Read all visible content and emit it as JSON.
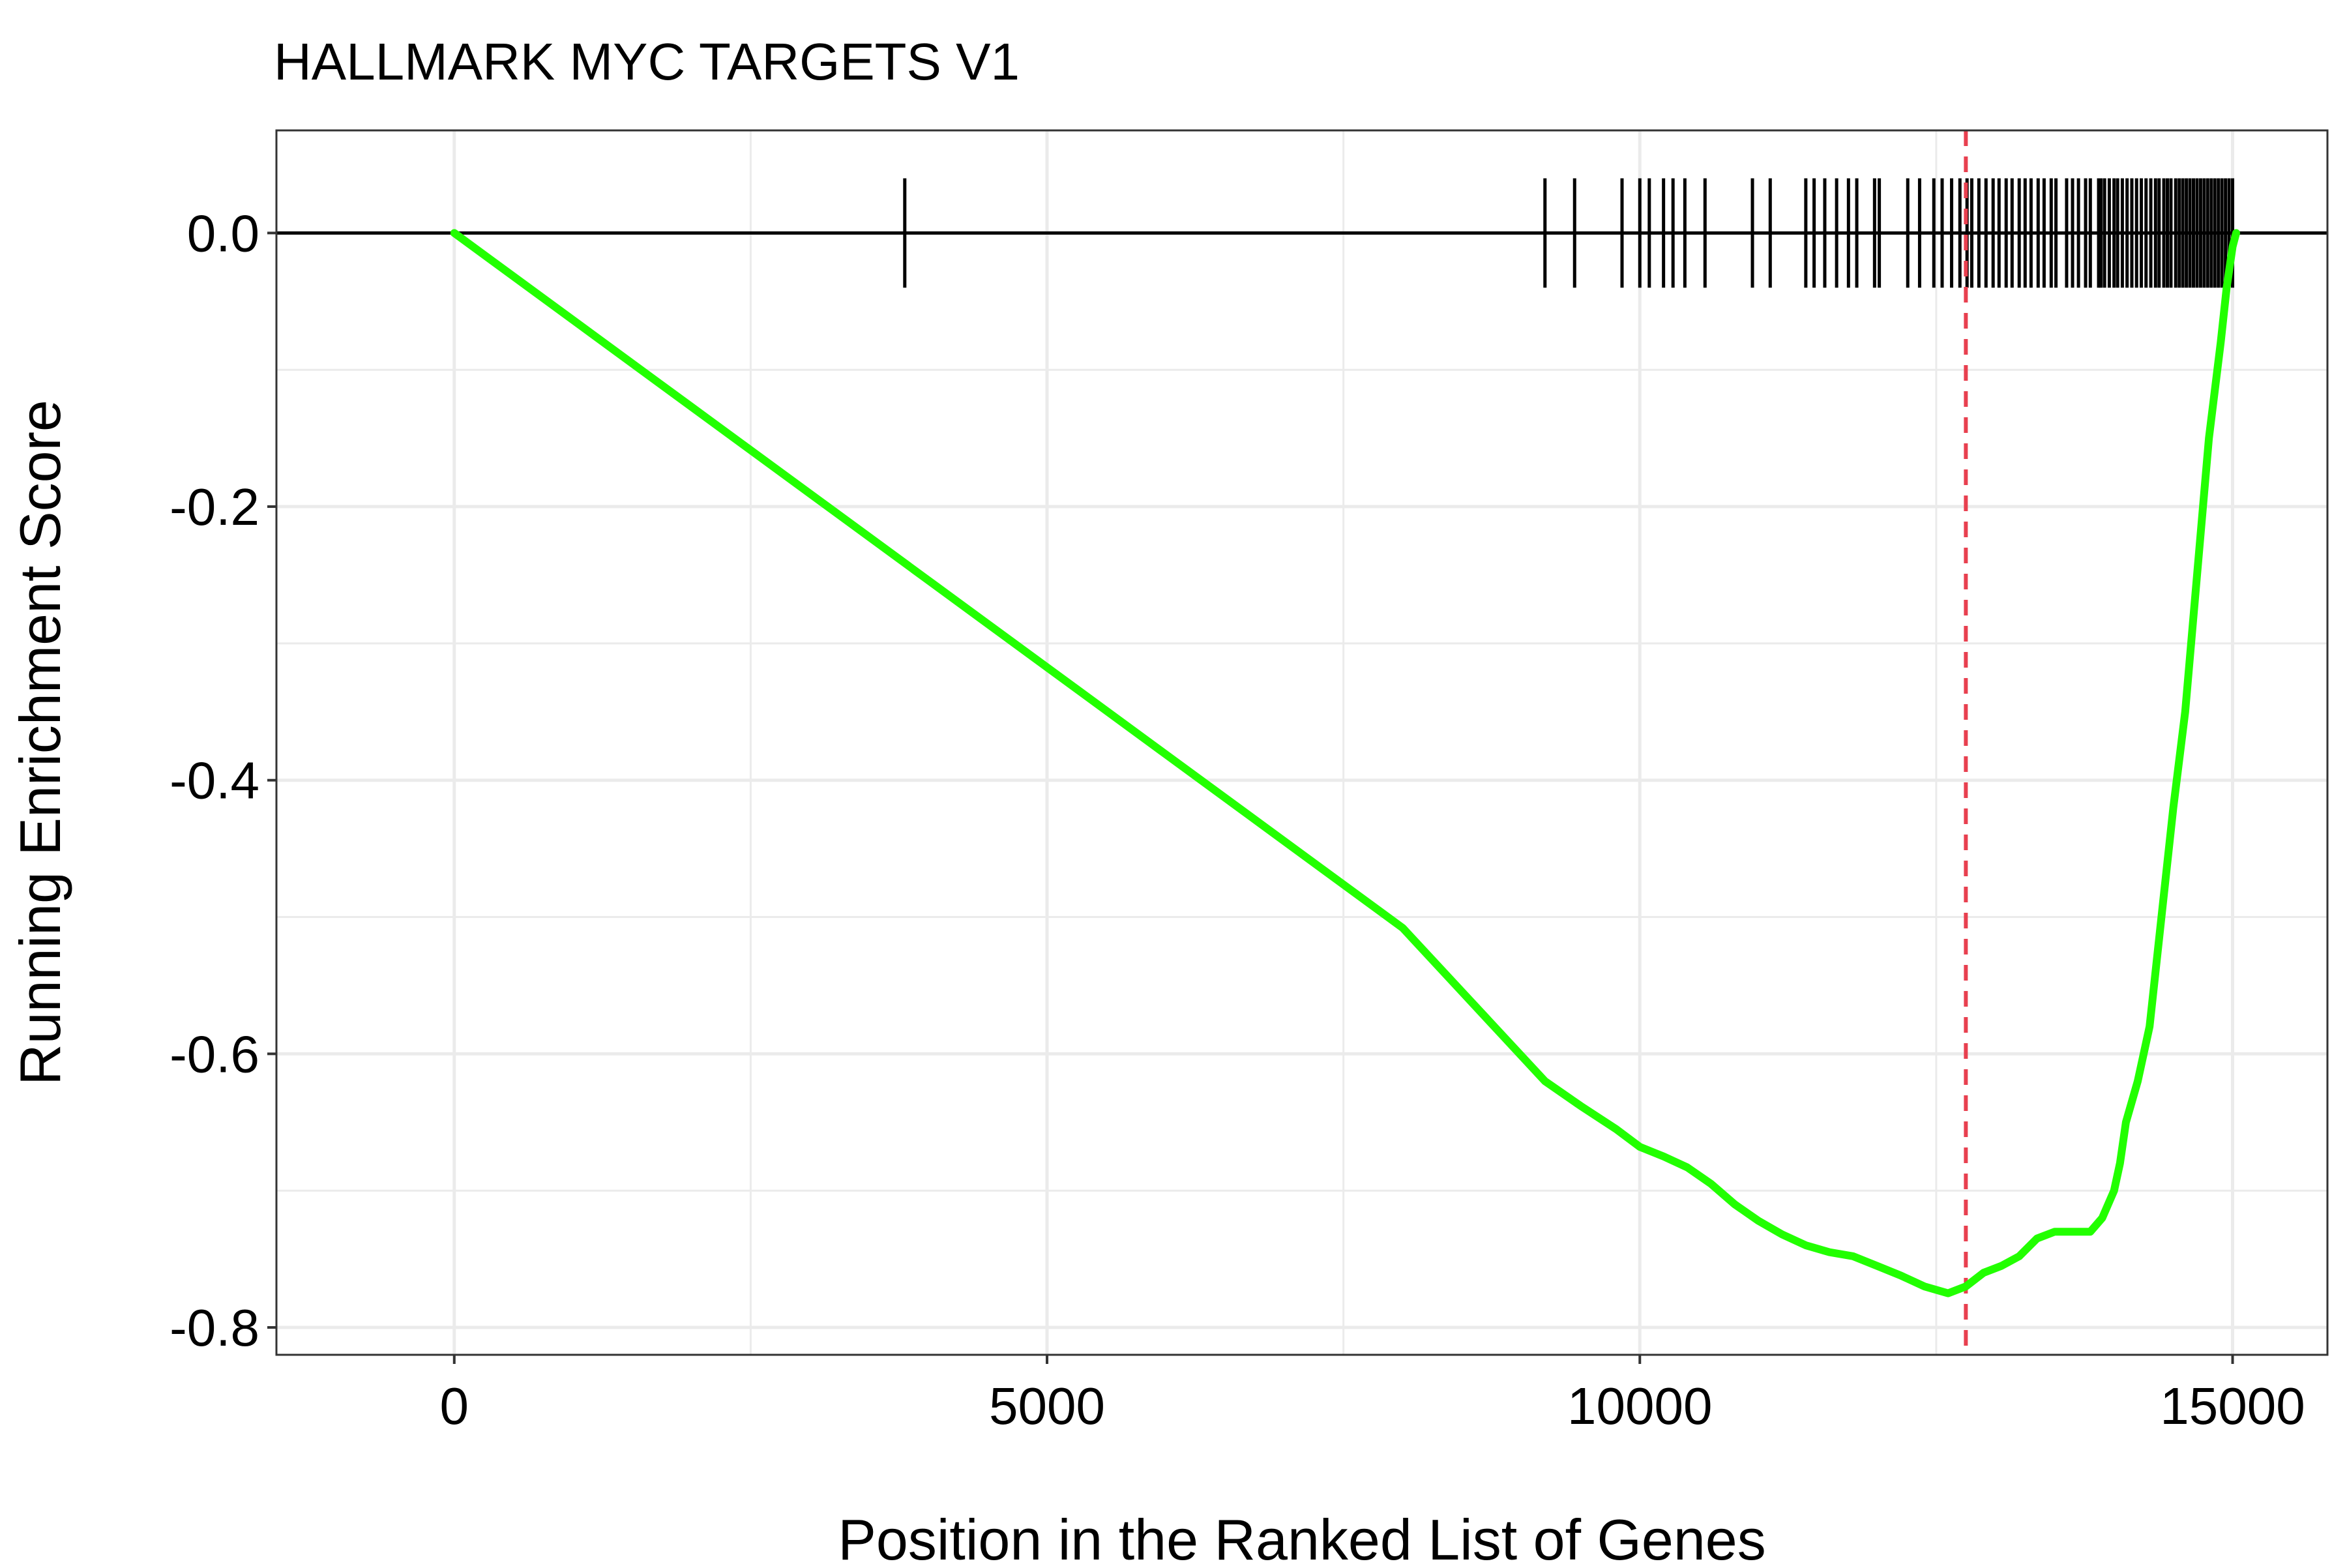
{
  "chart_data": {
    "type": "line",
    "title": "HALLMARK MYC TARGETS V1",
    "xlabel": "Position in the Ranked List of Genes",
    "ylabel": "Running Enrichment Score",
    "xlim": [
      -1500,
      15800
    ],
    "ylim": [
      -0.82,
      0.075
    ],
    "x_ticks": [
      0,
      5000,
      10000,
      15000
    ],
    "x_tick_labels": [
      "0",
      "5000",
      "10000",
      "15000"
    ],
    "x_minor_ticks": [
      2500,
      7500,
      12500
    ],
    "y_ticks": [
      0.0,
      -0.2,
      -0.4,
      -0.6,
      -0.8
    ],
    "y_tick_labels": [
      "0.0",
      "-0.2",
      "-0.4",
      "-0.6",
      "-0.8"
    ],
    "y_minor_ticks": [
      -0.1,
      -0.3,
      -0.5,
      -0.7
    ],
    "grid": true,
    "colors": {
      "curve": "#22ff00",
      "peak_line": "#e8404f",
      "hits": "#000000",
      "grid": "#ebebeb",
      "border": "#333333"
    },
    "series": [
      {
        "x": [
          0,
          2000,
          4000,
          6000,
          8000,
          9200,
          9500,
          9800,
          10000,
          10200,
          10400,
          10600,
          10800,
          11000,
          11200,
          11400,
          11600,
          11800,
          12000,
          12200,
          12400,
          12600,
          12750,
          12900,
          13050,
          13200,
          13350,
          13500,
          13650,
          13800,
          13900,
          14000,
          14050,
          14100,
          14200,
          14300,
          14400,
          14500,
          14600,
          14700,
          14800,
          14900,
          14950,
          15000,
          15030
        ],
        "y": [
          0.0,
          -0.127,
          -0.254,
          -0.381,
          -0.508,
          -0.62,
          -0.638,
          -0.655,
          -0.668,
          -0.675,
          -0.683,
          -0.695,
          -0.71,
          -0.722,
          -0.732,
          -0.74,
          -0.745,
          -0.748,
          -0.755,
          -0.762,
          -0.77,
          -0.775,
          -0.77,
          -0.76,
          -0.755,
          -0.748,
          -0.735,
          -0.73,
          -0.73,
          -0.73,
          -0.72,
          -0.7,
          -0.68,
          -0.65,
          -0.62,
          -0.58,
          -0.5,
          -0.42,
          -0.35,
          -0.25,
          -0.15,
          -0.08,
          -0.04,
          -0.01,
          0.0
        ]
      }
    ],
    "peak_x": 12750,
    "hit_positions": [
      3800,
      9200,
      9450,
      9850,
      10000,
      10080,
      10200,
      10280,
      10380,
      10550,
      10950,
      11100,
      11400,
      11470,
      11560,
      11660,
      11760,
      11830,
      11980,
      12020,
      12260,
      12360,
      12480,
      12550,
      12630,
      12700,
      12760,
      12800,
      12860,
      12920,
      12980,
      13030,
      13090,
      13140,
      13200,
      13250,
      13300,
      13360,
      13410,
      13470,
      13510,
      13600,
      13650,
      13700,
      13760,
      13800,
      13870,
      13890,
      13920,
      13960,
      14000,
      14030,
      14070,
      14110,
      14150,
      14190,
      14230,
      14270,
      14310,
      14350,
      14380,
      14420,
      14450,
      14480,
      14520,
      14550,
      14580,
      14610,
      14640,
      14670,
      14700,
      14730,
      14760,
      14790,
      14820,
      14850,
      14880,
      14910,
      14940,
      14970,
      15000
    ]
  }
}
